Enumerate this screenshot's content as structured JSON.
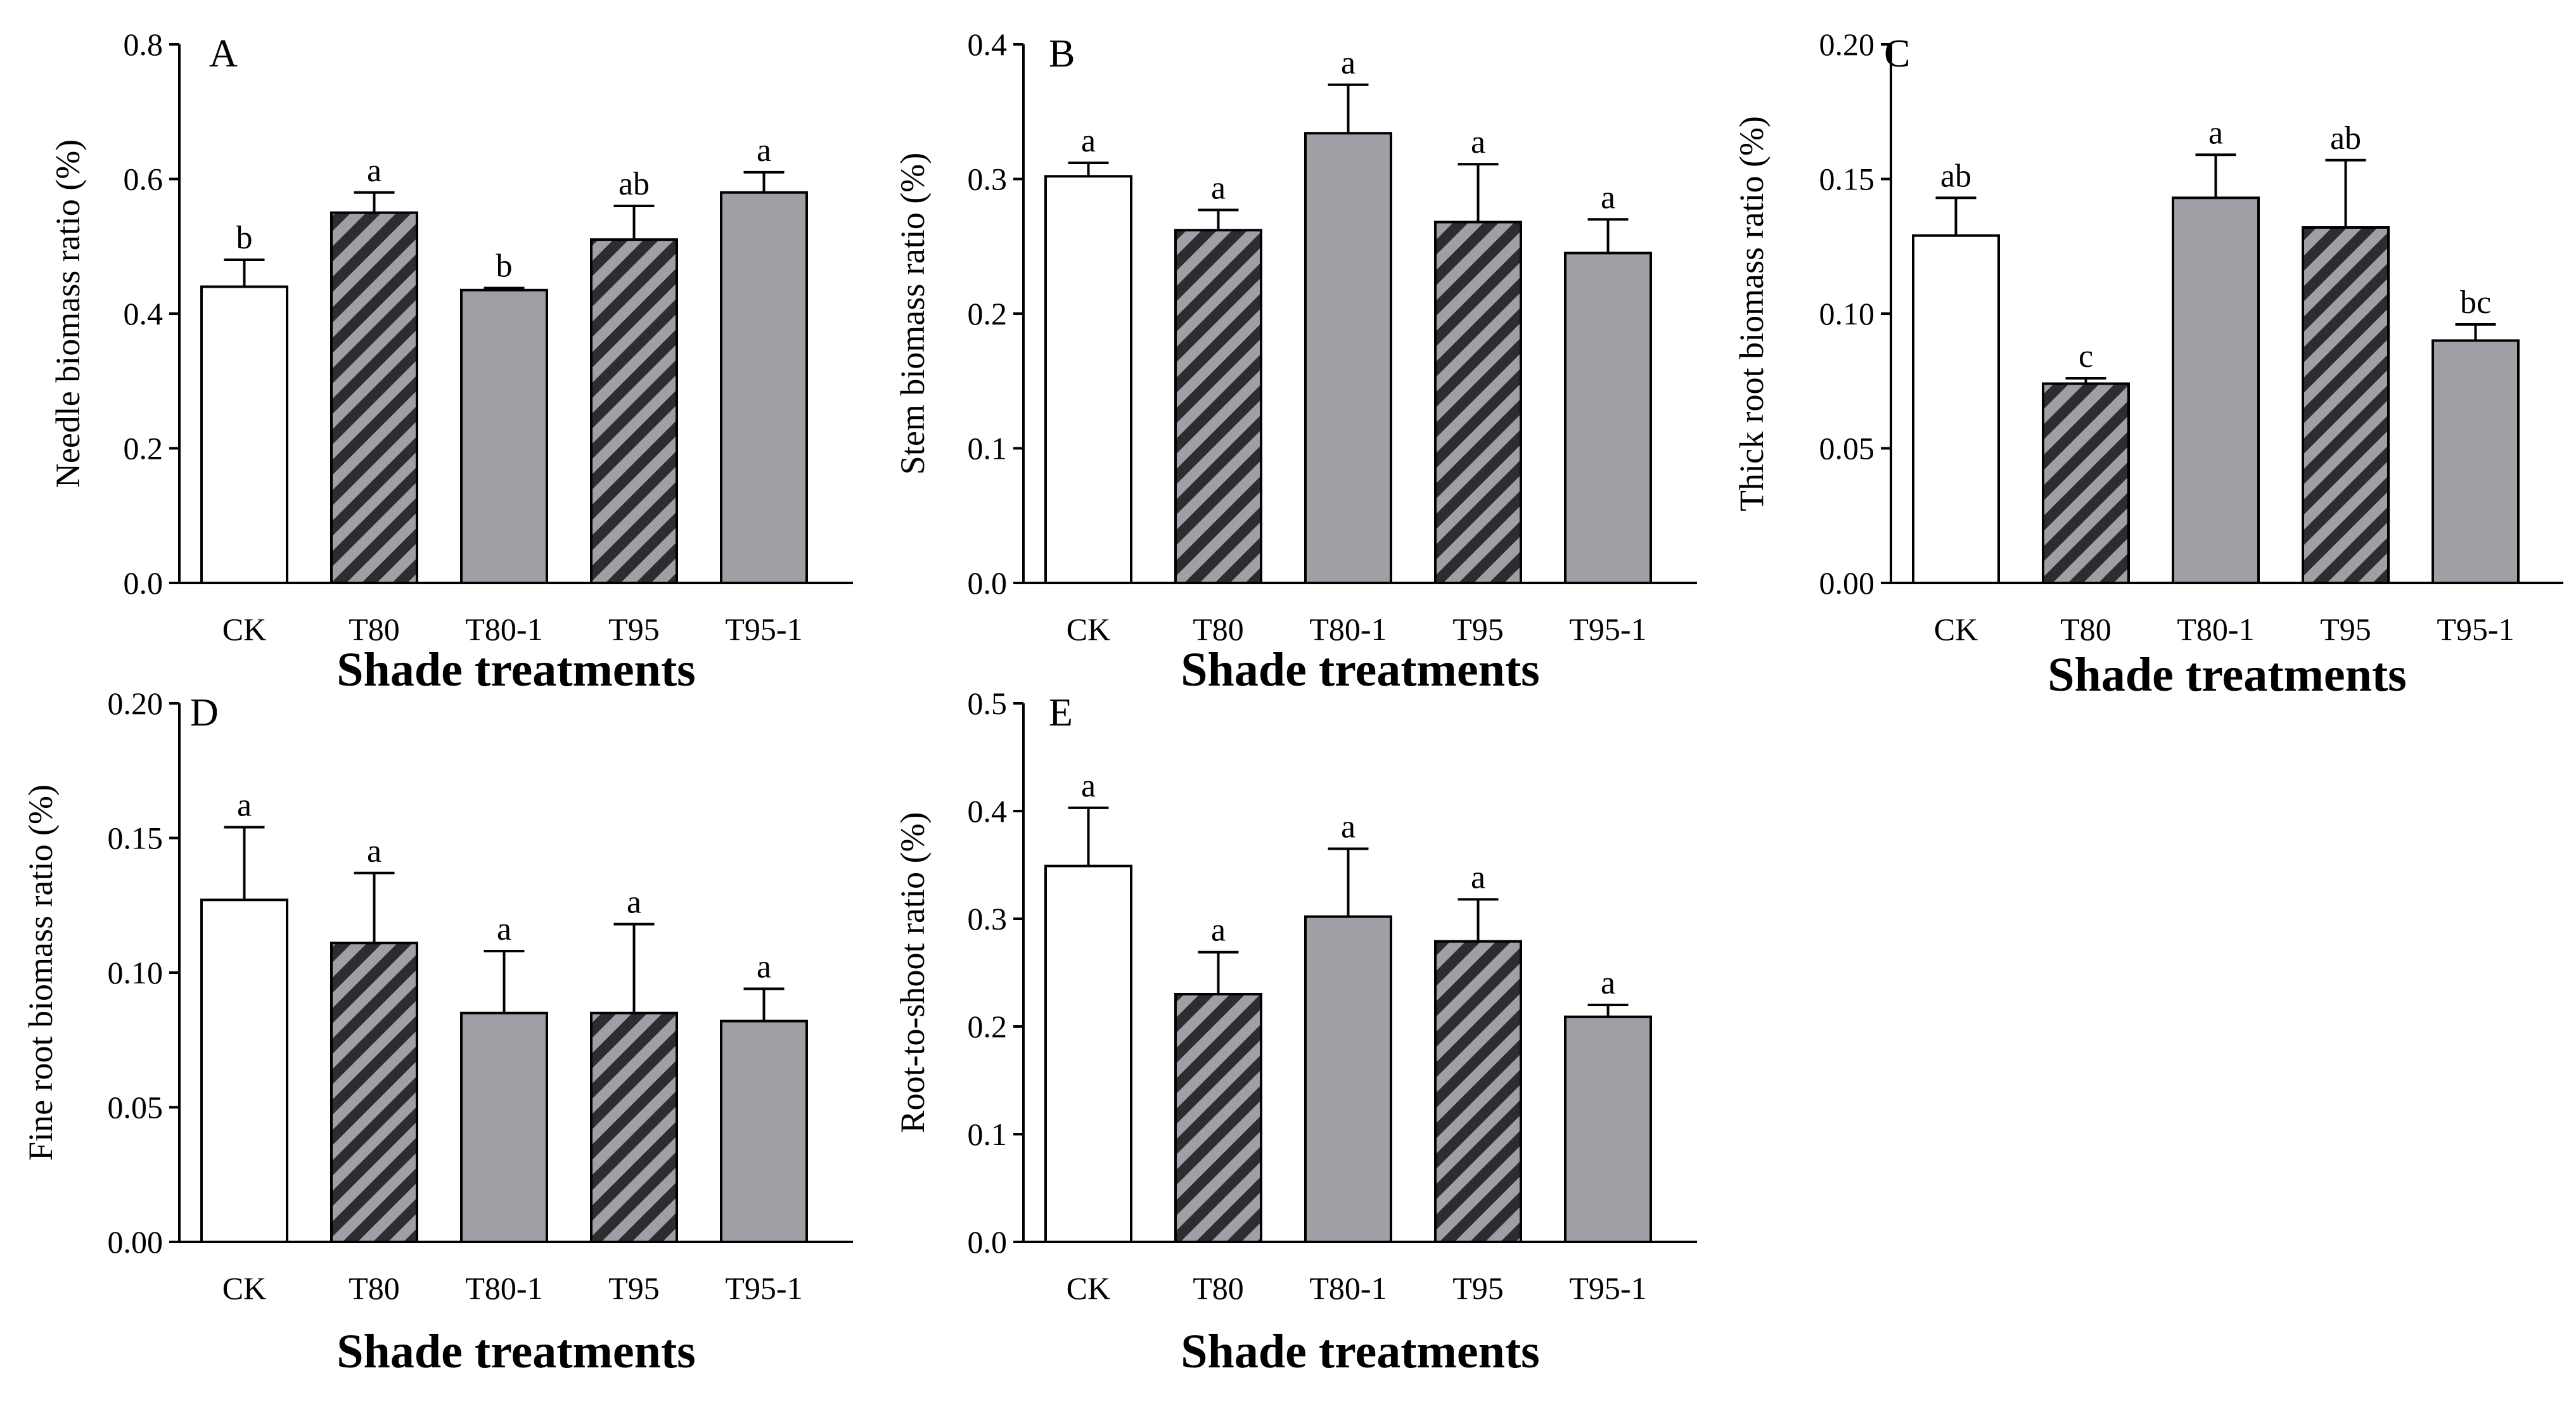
{
  "chart_data": [
    {
      "type": "bar",
      "panel": "A",
      "categories": [
        "CK",
        "T80",
        "T80-1",
        "T95",
        "T95-1"
      ],
      "values": [
        0.44,
        0.55,
        0.435,
        0.51,
        0.58
      ],
      "errors": [
        0.04,
        0.03,
        0.003,
        0.05,
        0.03
      ],
      "letters": [
        "b",
        "a",
        "b",
        "ab",
        "a"
      ],
      "fills": [
        "white",
        "hatch",
        "gray",
        "hatch",
        "gray"
      ],
      "ylabel": "Needle biomass ratio (%)",
      "xlabel": "Shade treatments",
      "ylim": [
        0,
        0.8
      ],
      "yticks": [
        0.0,
        0.2,
        0.4,
        0.6,
        0.8
      ],
      "ytick_labels": [
        "0.0",
        "0.2",
        "0.4",
        "0.6",
        "0.8"
      ]
    },
    {
      "type": "bar",
      "panel": "B",
      "categories": [
        "CK",
        "T80",
        "T80-1",
        "T95",
        "T95-1"
      ],
      "values": [
        0.302,
        0.262,
        0.334,
        0.268,
        0.245
      ],
      "errors": [
        0.01,
        0.015,
        0.036,
        0.043,
        0.025
      ],
      "letters": [
        "a",
        "a",
        "a",
        "a",
        "a"
      ],
      "fills": [
        "white",
        "hatch",
        "gray",
        "hatch",
        "gray"
      ],
      "ylabel": "Stem biomass ratio (%)",
      "xlabel": "Shade treatments",
      "ylim": [
        0,
        0.4
      ],
      "yticks": [
        0.0,
        0.1,
        0.2,
        0.3,
        0.4
      ],
      "ytick_labels": [
        "0.0",
        "0.1",
        "0.2",
        "0.3",
        "0.4"
      ]
    },
    {
      "type": "bar",
      "panel": "C",
      "categories": [
        "CK",
        "T80",
        "T80-1",
        "T95",
        "T95-1"
      ],
      "values": [
        0.129,
        0.074,
        0.143,
        0.132,
        0.09
      ],
      "errors": [
        0.014,
        0.002,
        0.016,
        0.025,
        0.006
      ],
      "letters": [
        "ab",
        "c",
        "a",
        "ab",
        "bc"
      ],
      "fills": [
        "white",
        "hatch",
        "gray",
        "hatch",
        "gray"
      ],
      "ylabel": "Thick root biomass ratio (%)",
      "xlabel": "Shade treatments",
      "ylim": [
        0,
        0.2
      ],
      "yticks": [
        0.0,
        0.05,
        0.1,
        0.15,
        0.2
      ],
      "ytick_labels": [
        "0.00",
        "0.05",
        "0.10",
        "0.15",
        "0.20"
      ]
    },
    {
      "type": "bar",
      "panel": "D",
      "categories": [
        "CK",
        "T80",
        "T80-1",
        "T95",
        "T95-1"
      ],
      "values": [
        0.127,
        0.111,
        0.085,
        0.085,
        0.082
      ],
      "errors": [
        0.027,
        0.026,
        0.023,
        0.033,
        0.012
      ],
      "letters": [
        "a",
        "a",
        "a",
        "a",
        "a"
      ],
      "fills": [
        "white",
        "hatch",
        "gray",
        "hatch",
        "gray"
      ],
      "ylabel": "Fine root biomass ratio (%)",
      "xlabel": "Shade treatments",
      "ylim": [
        0,
        0.2
      ],
      "yticks": [
        0.0,
        0.05,
        0.1,
        0.15,
        0.2
      ],
      "ytick_labels": [
        "0.00",
        "0.05",
        "0.10",
        "0.15",
        "0.20"
      ]
    },
    {
      "type": "bar",
      "panel": "E",
      "categories": [
        "CK",
        "T80",
        "T80-1",
        "T95",
        "T95-1"
      ],
      "values": [
        0.349,
        0.23,
        0.302,
        0.279,
        0.209
      ],
      "errors": [
        0.054,
        0.039,
        0.063,
        0.039,
        0.011
      ],
      "letters": [
        "a",
        "a",
        "a",
        "a",
        "a"
      ],
      "fills": [
        "white",
        "hatch",
        "gray",
        "hatch",
        "gray"
      ],
      "ylabel": "Root-to-shoot ratio (%)",
      "xlabel": "Shade treatments",
      "ylim": [
        0,
        0.5
      ],
      "yticks": [
        0.0,
        0.1,
        0.2,
        0.3,
        0.4,
        0.5
      ],
      "ytick_labels": [
        "0.0",
        "0.1",
        "0.2",
        "0.3",
        "0.4",
        "0.5"
      ]
    }
  ],
  "colors": {
    "bar_gray": "#a09fa5",
    "hatch_dark": "#2d2c31",
    "hatch_light": "#a09fa5",
    "bar_white": "#ffffff",
    "stroke": "#000000"
  }
}
